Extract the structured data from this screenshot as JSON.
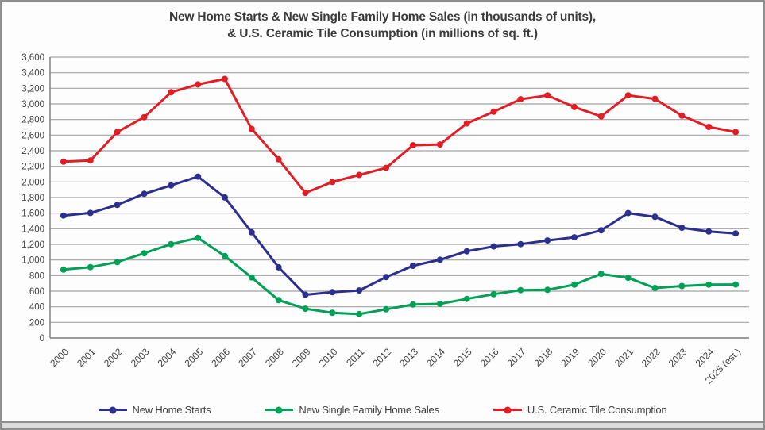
{
  "title": {
    "line1": "New Home Starts & New Single Family Home Sales (in thousands of units),",
    "line2": "& U.S. Ceramic Tile Consumption (in millions of sq. ft.)"
  },
  "palette": {
    "home_starts": "#2d2f8e",
    "single_family_sales": "#00a156",
    "tile_consumption": "#e11d25",
    "grid_line": "#a3a3a3",
    "axis_line": "#7a7a7a",
    "text": "#3f3f3f",
    "frame_border": "#8f8f8f",
    "bottom_strip": "#dcdcdc"
  },
  "chart_data": {
    "type": "line",
    "title": "New Home Starts & New Single Family Home Sales (in thousands of units), & U.S. Ceramic Tile Consumption (in millions of sq. ft.)",
    "categories": [
      "2000",
      "2001",
      "2002",
      "2003",
      "2004",
      "2005",
      "2006",
      "2007",
      "2008",
      "2009",
      "2010",
      "2011",
      "2012",
      "2013",
      "2014",
      "2015",
      "2016",
      "2017",
      "2018",
      "2019",
      "2020",
      "2021",
      "2022",
      "2023",
      "2024",
      "2025 (est.)"
    ],
    "series": [
      {
        "name": "New Home Starts",
        "color": "#2d2f8e",
        "values": [
          1569,
          1603,
          1705,
          1848,
          1956,
          2068,
          1801,
          1355,
          906,
          554,
          587,
          609,
          781,
          925,
          1003,
          1112,
          1174,
          1203,
          1250,
          1290,
          1380,
          1601,
          1553,
          1413,
          1365,
          1340
        ]
      },
      {
        "name": "New Single Family Home Sales",
        "color": "#00a156",
        "values": [
          877,
          908,
          973,
          1086,
          1203,
          1283,
          1051,
          776,
          485,
          375,
          323,
          306,
          368,
          429,
          437,
          501,
          561,
          613,
          617,
          683,
          822,
          771,
          641,
          666,
          683,
          685
        ]
      },
      {
        "name": "U.S. Ceramic Tile Consumption",
        "color": "#e11d25",
        "values": [
          2260,
          2275,
          2640,
          2830,
          3150,
          3250,
          3320,
          2680,
          2290,
          1860,
          2000,
          2090,
          2180,
          2470,
          2480,
          2750,
          2900,
          3060,
          3110,
          2960,
          2840,
          3110,
          3065,
          2850,
          2705,
          2640
        ]
      }
    ],
    "ylim": [
      0,
      3600
    ],
    "ytick_step": 200,
    "grid": true,
    "legend_position": "bottom",
    "x_label_rotation_deg": -45
  }
}
